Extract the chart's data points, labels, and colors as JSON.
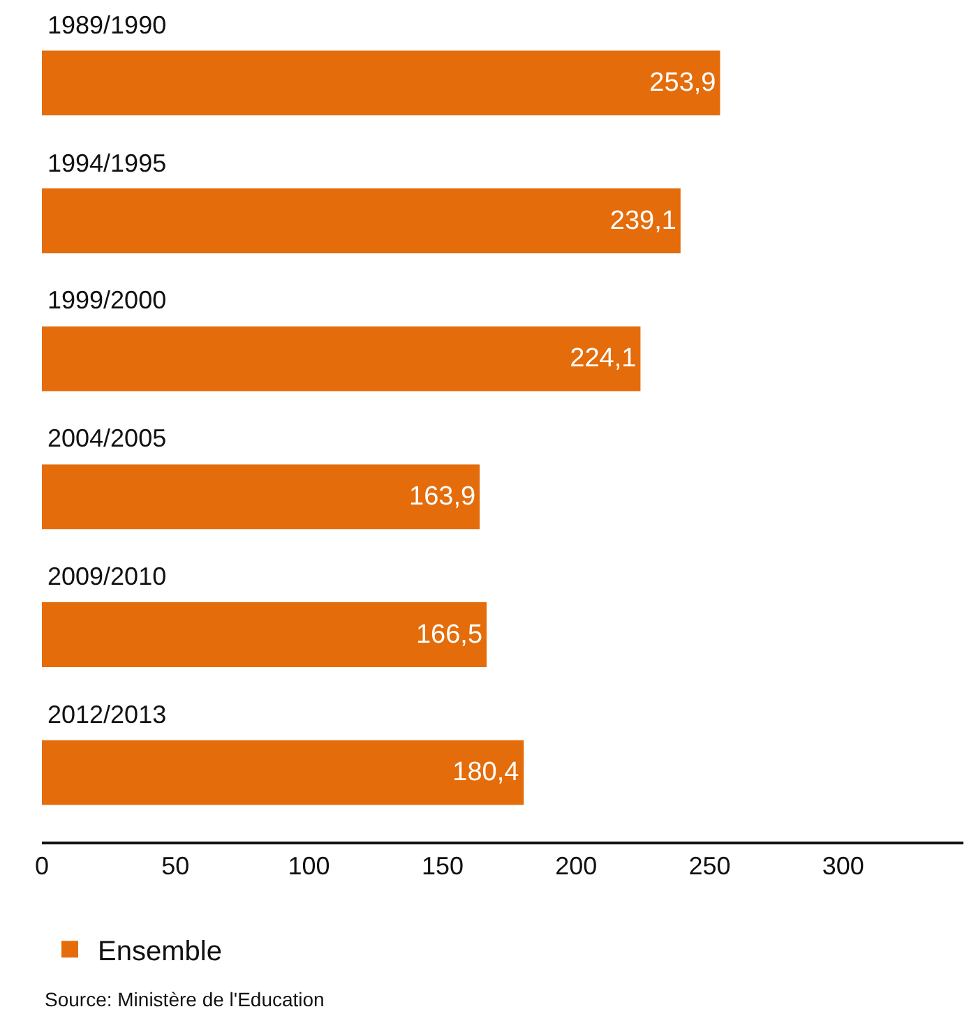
{
  "chart_data": {
    "type": "bar",
    "orientation": "horizontal",
    "categories": [
      "1989/1990",
      "1994/1995",
      "1999/2000",
      "2004/2005",
      "2009/2010",
      "2012/2013"
    ],
    "series": [
      {
        "name": "Ensemble",
        "color": "#e46c0a",
        "values": [
          253.9,
          239.1,
          224.1,
          163.9,
          166.5,
          180.4
        ]
      }
    ],
    "value_labels": [
      "253,9",
      "239,1",
      "224,1",
      "163,9",
      "166,5",
      "180,4"
    ],
    "xlim": [
      0,
      345
    ],
    "xticks": [
      0,
      50,
      100,
      150,
      200,
      250,
      300
    ],
    "legend": "bottom left",
    "annotations": [
      "Source: Ministère de l'Education"
    ]
  }
}
